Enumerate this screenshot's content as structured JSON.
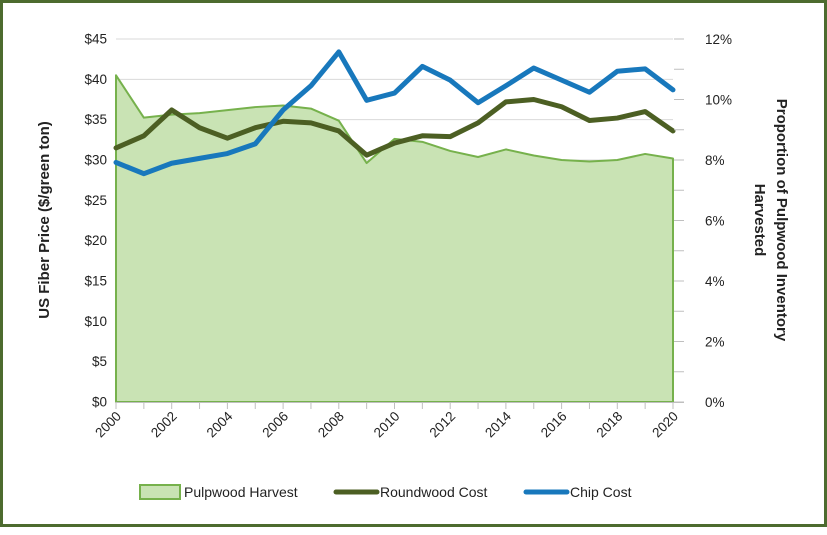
{
  "frame": {
    "border_color": "#4D6B2F",
    "background": "#FFFFFF"
  },
  "chart_data": {
    "type": "area+line combo",
    "x": [
      2000,
      2001,
      2002,
      2003,
      2004,
      2005,
      2006,
      2007,
      2008,
      2009,
      2010,
      2011,
      2012,
      2013,
      2014,
      2015,
      2016,
      2017,
      2018,
      2019,
      2020
    ],
    "x_tick_labels": [
      "2000",
      "2002",
      "2004",
      "2006",
      "2008",
      "2010",
      "2012",
      "2014",
      "2016",
      "2018",
      "2020"
    ],
    "left_axis": {
      "title": "US Fiber Price ($/green ton)",
      "min": 0,
      "max": 45,
      "major": 5,
      "tick_labels": [
        "$0",
        "$5",
        "$10",
        "$15",
        "$20",
        "$25",
        "$30",
        "$35",
        "$40",
        "$45"
      ]
    },
    "right_axis": {
      "title_line1": "Proportion of Pulpwood Inventory",
      "title_line2": "Harvested",
      "min": 0,
      "max": 12,
      "major": 2,
      "minor": 1,
      "tick_labels": [
        "0%",
        "2%",
        "4%",
        "6%",
        "8%",
        "10%",
        "12%"
      ]
    },
    "grid": {
      "show": true,
      "color": "#D9D9D9",
      "axis_color": "#BFBFBF"
    },
    "legend_position": "bottom",
    "series": [
      {
        "name": "Pulpwood Harvest",
        "type": "area",
        "axis": "right",
        "fill": "#C9E3B4",
        "stroke": "#76B14C",
        "values": [
          10.8,
          9.4,
          9.5,
          9.55,
          9.65,
          9.75,
          9.8,
          9.7,
          9.3,
          7.9,
          8.7,
          8.6,
          8.3,
          8.1,
          8.35,
          8.15,
          8.0,
          7.95,
          8.0,
          8.2,
          8.05
        ]
      },
      {
        "name": "Roundwood Cost",
        "type": "line",
        "axis": "left",
        "stroke": "#4C5F23",
        "values": [
          31.5,
          33.0,
          36.2,
          34.0,
          32.7,
          34.0,
          34.8,
          34.6,
          33.6,
          30.6,
          32.1,
          33.0,
          32.9,
          34.6,
          37.2,
          37.5,
          36.6,
          34.9,
          35.2,
          36.0,
          33.6
        ]
      },
      {
        "name": "Chip Cost",
        "type": "line",
        "axis": "left",
        "stroke": "#1878BC",
        "values": [
          29.7,
          28.3,
          29.6,
          30.2,
          30.8,
          32.0,
          36.2,
          39.2,
          43.4,
          37.4,
          38.3,
          41.6,
          39.9,
          37.1,
          39.2,
          41.4,
          39.9,
          38.4,
          41.0,
          41.3,
          38.7
        ]
      }
    ]
  }
}
